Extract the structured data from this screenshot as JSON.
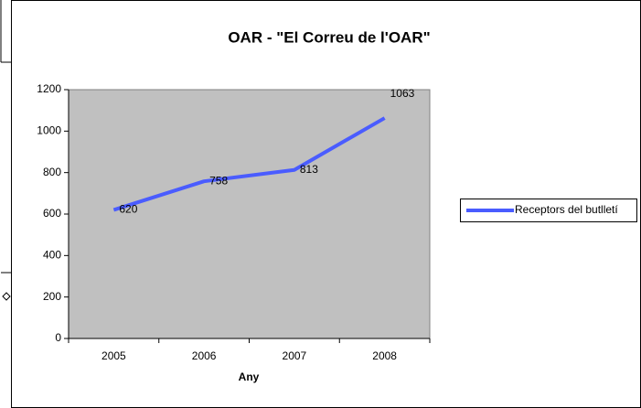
{
  "chart_data": {
    "type": "line",
    "title": "OAR - \"El Correu de l'OAR\"",
    "x_label": "Any",
    "categories": [
      "2005",
      "2006",
      "2007",
      "2008"
    ],
    "series": [
      {
        "name": "Receptors del butlletí",
        "color": "#4a5cff",
        "values": [
          620,
          758,
          813,
          1063
        ]
      }
    ],
    "ylim": [
      0,
      1200
    ],
    "yticks": [
      0,
      200,
      400,
      600,
      800,
      1000,
      1200
    ],
    "grid": false,
    "legend": "right",
    "plot_background": "#c0c0c0"
  }
}
